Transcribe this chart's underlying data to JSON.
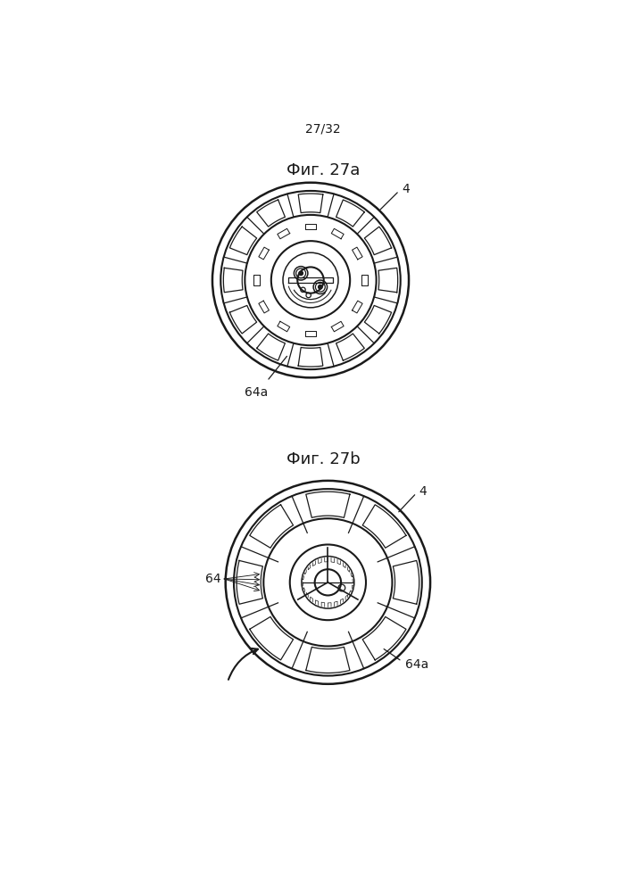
{
  "page_label": "27/32",
  "fig_a_label": "Фиг. 27a",
  "fig_b_label": "Фиг. 27b",
  "label_4a": "4",
  "label_64a_a": "64a",
  "label_4b": "4",
  "label_64b": "64",
  "label_64ab": "64a",
  "bg_color": "#ffffff",
  "line_color": "#1a1a1a",
  "line_width": 1.5,
  "thin_line": 0.9
}
